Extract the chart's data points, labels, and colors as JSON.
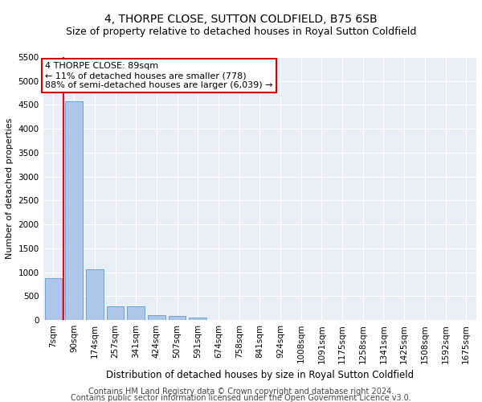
{
  "title1": "4, THORPE CLOSE, SUTTON COLDFIELD, B75 6SB",
  "title2": "Size of property relative to detached houses in Royal Sutton Coldfield",
  "xlabel": "Distribution of detached houses by size in Royal Sutton Coldfield",
  "ylabel": "Number of detached properties",
  "footer1": "Contains HM Land Registry data © Crown copyright and database right 2024.",
  "footer2": "Contains public sector information licensed under the Open Government Licence v3.0.",
  "annotation_line1": "4 THORPE CLOSE: 89sqm",
  "annotation_line2": "← 11% of detached houses are smaller (778)",
  "annotation_line3": "88% of semi-detached houses are larger (6,039) →",
  "bar_categories": [
    "7sqm",
    "90sqm",
    "174sqm",
    "257sqm",
    "341sqm",
    "424sqm",
    "507sqm",
    "591sqm",
    "674sqm",
    "758sqm",
    "841sqm",
    "924sqm",
    "1008sqm",
    "1091sqm",
    "1175sqm",
    "1258sqm",
    "1341sqm",
    "1425sqm",
    "1508sqm",
    "1592sqm",
    "1675sqm"
  ],
  "bar_values": [
    880,
    4570,
    1060,
    290,
    280,
    100,
    85,
    55,
    0,
    0,
    0,
    0,
    0,
    0,
    0,
    0,
    0,
    0,
    0,
    0,
    0
  ],
  "bar_color": "#aec6e8",
  "bar_edge_color": "#5b9bd5",
  "red_line_x": 0.5,
  "ylim": [
    0,
    5500
  ],
  "yticks": [
    0,
    500,
    1000,
    1500,
    2000,
    2500,
    3000,
    3500,
    4000,
    4500,
    5000,
    5500
  ],
  "fig_bg": "#ffffff",
  "ax_bg": "#e8eef5",
  "grid_color": "#ffffff",
  "annotation_box_facecolor": "#ffffff",
  "annotation_box_edgecolor": "#cc0000",
  "title1_fontsize": 10,
  "title2_fontsize": 9,
  "xlabel_fontsize": 8.5,
  "ylabel_fontsize": 8,
  "tick_fontsize": 7.5,
  "footer_fontsize": 7,
  "annot_fontsize": 8
}
